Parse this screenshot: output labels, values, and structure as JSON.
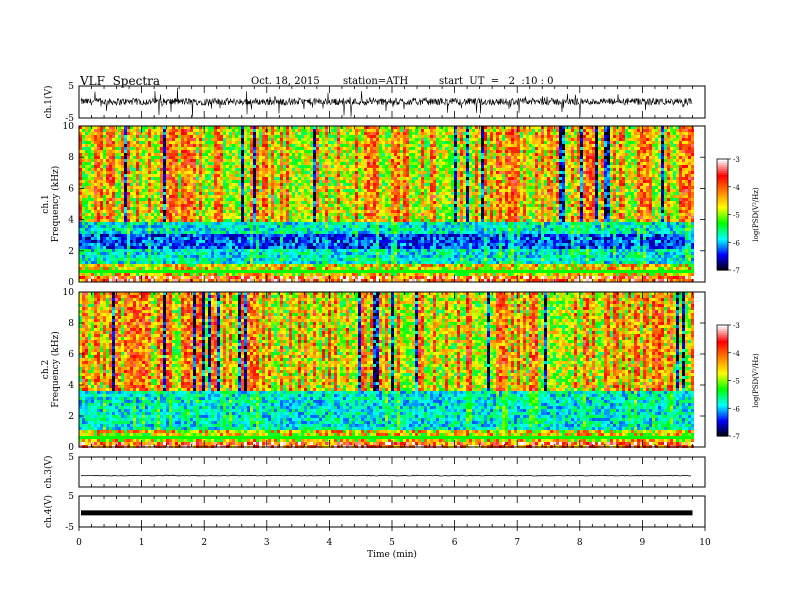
{
  "header": {
    "title": "VLF  Spectra",
    "date": "Oct. 18, 2015",
    "station": "station=ATH",
    "start": "start  UT  =   2  :10 : 0"
  },
  "chart_data": [
    {
      "type": "line",
      "name": "ch1-waveform",
      "ylabel": "ch.1(V)",
      "ytick_labels": [
        "5",
        "-5"
      ],
      "ylim": [
        -5,
        5
      ],
      "xlim": [
        0,
        10
      ],
      "data_extent_min": 9.8,
      "color": "#000000"
    },
    {
      "type": "heatmap",
      "name": "ch1-spectrogram",
      "ylabel_channel": "ch.1",
      "ylabel": "Frequency  (kHz)",
      "yticks": [
        0,
        2,
        4,
        6,
        8,
        10
      ],
      "ylim": [
        0,
        10
      ],
      "xlim": [
        0,
        10
      ],
      "data_extent_min": 9.8,
      "colorbar": {
        "label": "log(PSD(V²/Hz)",
        "ticks": [
          -3,
          -4,
          -5,
          -6,
          -7
        ],
        "range": [
          -7,
          -3
        ],
        "colors": [
          "#000000",
          "#0000ff",
          "#00ffff",
          "#00ff00",
          "#ffff00",
          "#ff8000",
          "#ff0000",
          "#ffffff"
        ]
      }
    },
    {
      "type": "heatmap",
      "name": "ch2-spectrogram",
      "ylabel_channel": "ch.2",
      "ylabel": "Frequency  (kHz)",
      "yticks": [
        0,
        2,
        4,
        6,
        8,
        10
      ],
      "ylim": [
        0,
        10
      ],
      "xlim": [
        0,
        10
      ],
      "data_extent_min": 9.8,
      "colorbar": {
        "label": "log(PSD(V²/Hz)",
        "ticks": [
          -3,
          -4,
          -5,
          -6,
          -7
        ],
        "range": [
          -7,
          -3
        ],
        "colors": [
          "#000000",
          "#0000ff",
          "#00ffff",
          "#00ff00",
          "#ffff00",
          "#ff8000",
          "#ff0000",
          "#ffffff"
        ]
      }
    },
    {
      "type": "line",
      "name": "ch3-waveform",
      "ylabel": "ch.3(V)",
      "ytick_labels": [
        "5"
      ],
      "ylim": [
        -5,
        5
      ],
      "xlim": [
        0,
        10
      ],
      "data_extent_min": 9.8,
      "level": -1.2
    },
    {
      "type": "line",
      "name": "ch4-waveform",
      "ylabel": "ch.4(V)",
      "ytick_labels": [
        "5",
        "-5"
      ],
      "ylim": [
        -5,
        5
      ],
      "xlim": [
        0,
        10
      ],
      "data_extent_min": 9.8,
      "level": -0.6,
      "xlabel": "Time  (min)",
      "xticks": [
        0,
        1,
        2,
        3,
        4,
        5,
        6,
        7,
        8,
        9,
        10
      ]
    }
  ]
}
